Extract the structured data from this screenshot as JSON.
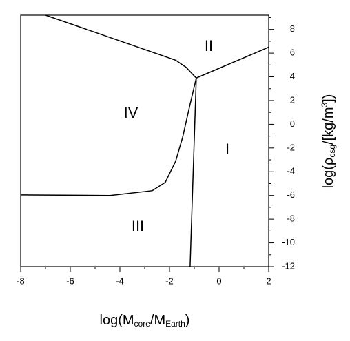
{
  "chart_data": {
    "type": "line",
    "xlabel": [
      "log(M",
      "core",
      "/M",
      "Earth",
      ")"
    ],
    "ylabel": [
      "log(ρ",
      "csg",
      "/[kg/m",
      "3",
      "])"
    ],
    "xlim": [
      -8,
      2
    ],
    "ylim": [
      -12,
      9.2
    ],
    "xticks": [
      -8,
      -6,
      -4,
      -2,
      0,
      2
    ],
    "xminorticks": [
      -7,
      -5,
      -3,
      -1,
      1
    ],
    "yticks": [
      -12,
      -10,
      -8,
      -6,
      -4,
      -2,
      0,
      2,
      4,
      6,
      8
    ],
    "yminorticks": [
      -11,
      -9,
      -7,
      -5,
      -3,
      -1,
      1,
      3,
      5,
      7,
      9
    ],
    "series": [
      {
        "color": "#000000",
        "x": [
          -7,
          -1.75,
          -1.33,
          -0.92
        ],
        "values": [
          9.2,
          5.4,
          4.8,
          3.9
        ]
      },
      {
        "color": "#000000",
        "x": [
          -0.92,
          2
        ],
        "values": [
          3.9,
          6.5
        ]
      },
      {
        "color": "#000000",
        "x": [
          -0.92,
          -1.17
        ],
        "values": [
          3.9,
          -12
        ]
      },
      {
        "color": "#000000",
        "x": [
          -8,
          -4.4,
          -2.7,
          -2.17,
          -1.75,
          -1.47,
          -1.19,
          -0.92
        ],
        "values": [
          -5.95,
          -6.0,
          -5.6,
          -4.9,
          -3.1,
          -1.1,
          1.5,
          3.9
        ]
      }
    ],
    "annotations": [
      "II",
      "IV",
      "I",
      "III"
    ]
  }
}
